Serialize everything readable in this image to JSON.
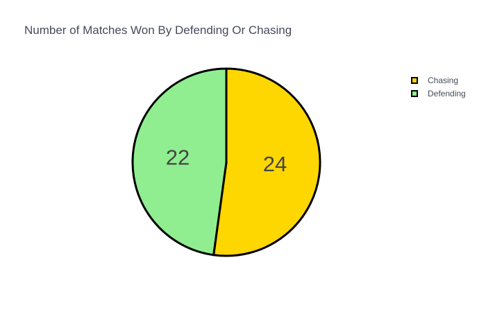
{
  "chart_data": {
    "type": "pie",
    "title": "Number of Matches Won By Defending Or Chasing",
    "categories": [
      "Chasing",
      "Defending"
    ],
    "values": [
      24,
      22
    ],
    "colors": [
      "#FFD700",
      "#90EE90"
    ],
    "outline_color": "#000000",
    "text_info": "value",
    "legend": {
      "placement": "top-right",
      "items": [
        "Chasing",
        "Defending"
      ]
    }
  }
}
